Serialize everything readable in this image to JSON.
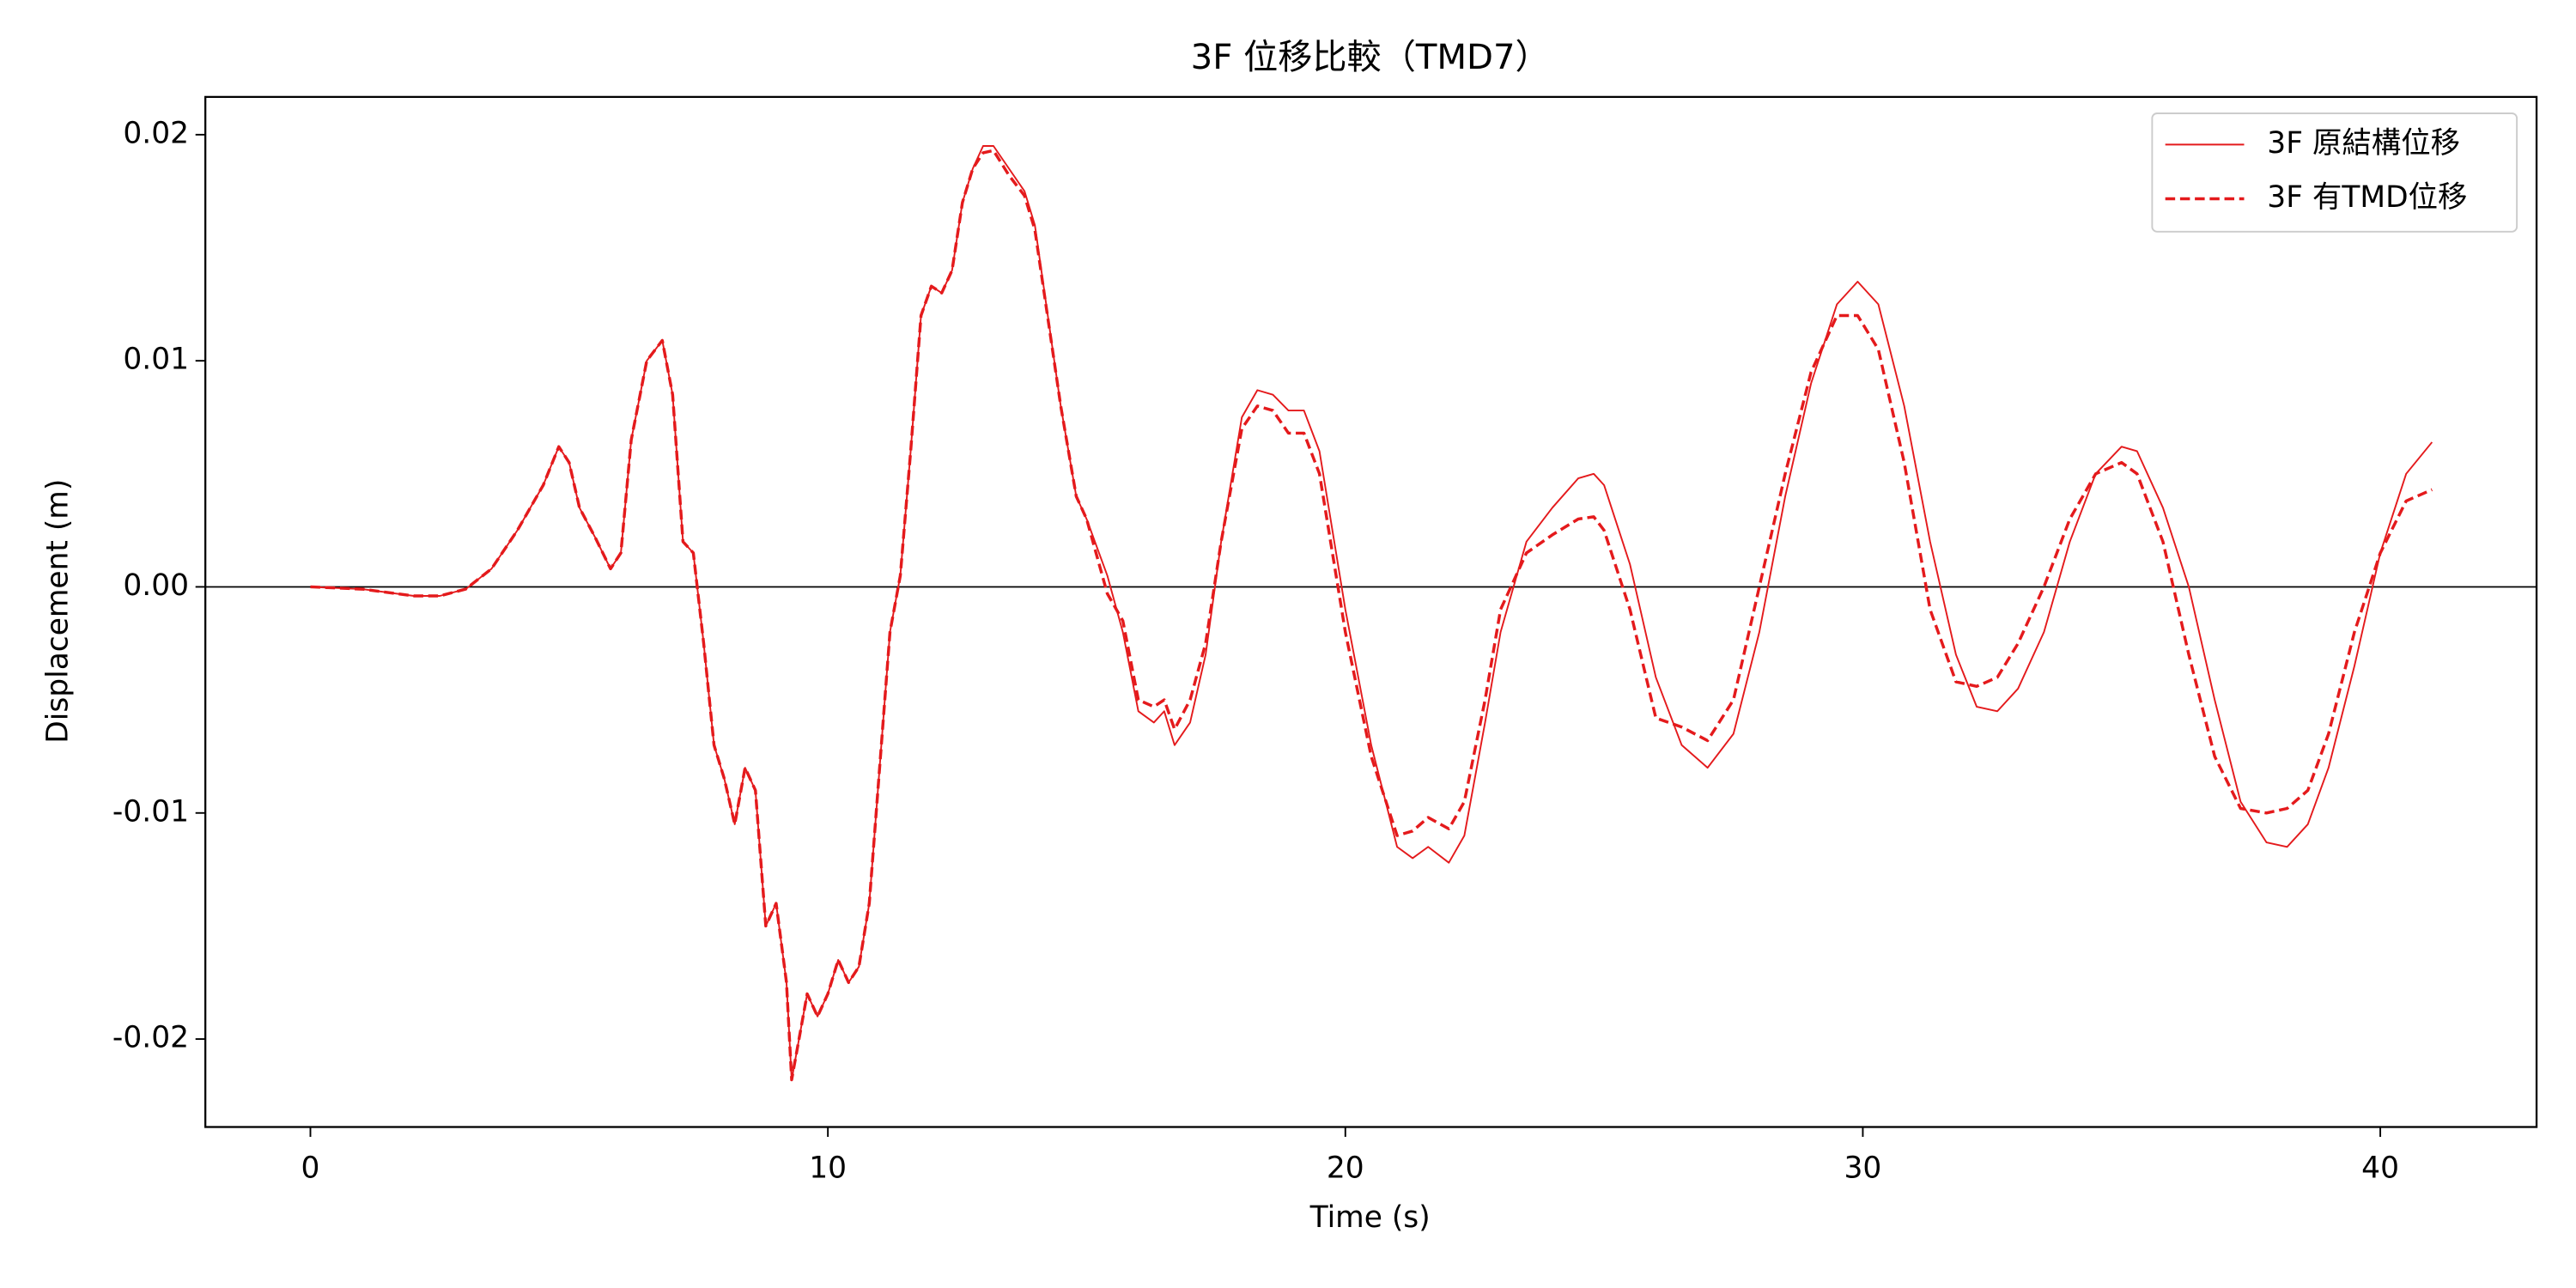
{
  "chart_data": {
    "type": "line",
    "title": "3F 位移比較（TMD7）",
    "xlabel": "Time (s)",
    "ylabel": "Displacement (m)",
    "xlim": [
      -2.03,
      43.02
    ],
    "ylim": [
      -0.02389,
      0.02167
    ],
    "xticks": [
      0,
      10,
      20,
      30,
      40
    ],
    "yticks": [
      -0.02,
      -0.01,
      {
        "value": 0,
        "label": "0.00"
      },
      0.01,
      0.02
    ],
    "axhline": 0,
    "legend": "upper right",
    "x": [
      0,
      1,
      2,
      2.5,
      3,
      3.5,
      4,
      4.5,
      4.8,
      5,
      5.2,
      5.5,
      5.8,
      6,
      6.2,
      6.5,
      6.8,
      7,
      7.2,
      7.4,
      7.6,
      7.8,
      8,
      8.2,
      8.4,
      8.6,
      8.8,
      9,
      9.2,
      9.3,
      9.6,
      9.8,
      10,
      10.2,
      10.4,
      10.6,
      10.8,
      11,
      11.2,
      11.4,
      11.6,
      11.8,
      12,
      12.2,
      12.4,
      12.6,
      12.8,
      13,
      13.2,
      13.5,
      13.8,
      14,
      14.5,
      14.8,
      15,
      15.4,
      15.7,
      16,
      16.3,
      16.5,
      16.7,
      17,
      17.3,
      17.6,
      18,
      18.3,
      18.6,
      18.9,
      19.2,
      19.5,
      20,
      20.5,
      21,
      21.3,
      21.6,
      22,
      22.3,
      22.7,
      23,
      23.5,
      24,
      24.5,
      24.8,
      25,
      25.5,
      26,
      26.5,
      27,
      27.5,
      28,
      28.5,
      29,
      29.5,
      29.9,
      30.3,
      30.8,
      31.3,
      31.8,
      32.2,
      32.6,
      33,
      33.5,
      34,
      34.5,
      35,
      35.3,
      35.8,
      36.3,
      36.8,
      37.3,
      37.8,
      38.2,
      38.6,
      39,
      39.5,
      40,
      40.5,
      41
    ],
    "series": [
      {
        "name": "3F 原結構位移",
        "color": "#e41a1c",
        "linestyle": "solid",
        "values": [
          0,
          -0.0001,
          -0.0004,
          -0.0004,
          -0.0001,
          0.0008,
          0.0025,
          0.0045,
          0.0062,
          0.0055,
          0.0035,
          0.0022,
          0.0008,
          0.0015,
          0.0065,
          0.01,
          0.0109,
          0.0085,
          0.002,
          0.0015,
          -0.0025,
          -0.007,
          -0.0085,
          -0.0105,
          -0.008,
          -0.009,
          -0.015,
          -0.014,
          -0.0175,
          -0.0218,
          -0.018,
          -0.019,
          -0.018,
          -0.0165,
          -0.0175,
          -0.0168,
          -0.014,
          -0.008,
          -0.002,
          0.0005,
          0.006,
          0.012,
          0.0133,
          0.013,
          0.014,
          0.017,
          0.0185,
          0.0195,
          0.0195,
          0.0185,
          0.0175,
          0.016,
          0.008,
          0.004,
          0.003,
          0.0005,
          -0.002,
          -0.0055,
          -0.006,
          -0.0055,
          -0.007,
          -0.006,
          -0.003,
          0.002,
          0.0075,
          0.0087,
          0.0085,
          0.0078,
          0.0078,
          0.006,
          -0.001,
          -0.007,
          -0.0115,
          -0.012,
          -0.0115,
          -0.0122,
          -0.011,
          -0.006,
          -0.002,
          0.002,
          0.0035,
          0.0048,
          0.005,
          0.0045,
          0.001,
          -0.004,
          -0.007,
          -0.008,
          -0.0065,
          -0.002,
          0.004,
          0.009,
          0.0125,
          0.0135,
          0.0125,
          0.008,
          0.002,
          -0.003,
          -0.0053,
          -0.0055,
          -0.0045,
          -0.002,
          0.002,
          0.005,
          0.0062,
          0.006,
          0.0035,
          0,
          -0.005,
          -0.0095,
          -0.0113,
          -0.0115,
          -0.0105,
          -0.008,
          -0.0035,
          0.0015,
          0.005,
          0.0064
        ]
      },
      {
        "name": "3F 有TMD位移",
        "color": "#e41a1c",
        "linestyle": "dashed",
        "values": [
          0,
          -0.0001,
          -0.0004,
          -0.0004,
          -0.0001,
          0.0008,
          0.0025,
          0.0045,
          0.0062,
          0.0055,
          0.0035,
          0.0022,
          0.0008,
          0.0015,
          0.0065,
          0.01,
          0.0109,
          0.0085,
          0.002,
          0.0015,
          -0.0025,
          -0.007,
          -0.0085,
          -0.0105,
          -0.008,
          -0.009,
          -0.015,
          -0.014,
          -0.0175,
          -0.0218,
          -0.018,
          -0.019,
          -0.018,
          -0.0165,
          -0.0175,
          -0.0168,
          -0.014,
          -0.008,
          -0.002,
          0.0005,
          0.006,
          0.012,
          0.0133,
          0.013,
          0.014,
          0.017,
          0.0185,
          0.0192,
          0.0193,
          0.0182,
          0.0173,
          0.0158,
          0.008,
          0.004,
          0.003,
          -0.0003,
          -0.0015,
          -0.005,
          -0.0053,
          -0.005,
          -0.0063,
          -0.005,
          -0.0025,
          0.002,
          0.007,
          0.008,
          0.0078,
          0.0068,
          0.0068,
          0.005,
          -0.002,
          -0.0075,
          -0.011,
          -0.0108,
          -0.0102,
          -0.0107,
          -0.0095,
          -0.005,
          -0.001,
          0.0015,
          0.0023,
          0.003,
          0.0031,
          0.0025,
          -0.001,
          -0.0058,
          -0.0062,
          -0.0068,
          -0.005,
          0,
          0.005,
          0.0095,
          0.012,
          0.012,
          0.0105,
          0.0055,
          -0.001,
          -0.0042,
          -0.0044,
          -0.004,
          -0.0025,
          0,
          0.003,
          0.005,
          0.0055,
          0.005,
          0.002,
          -0.003,
          -0.0075,
          -0.0098,
          -0.01,
          -0.0098,
          -0.009,
          -0.0065,
          -0.002,
          0.0015,
          0.0038,
          0.0043
        ]
      }
    ]
  }
}
